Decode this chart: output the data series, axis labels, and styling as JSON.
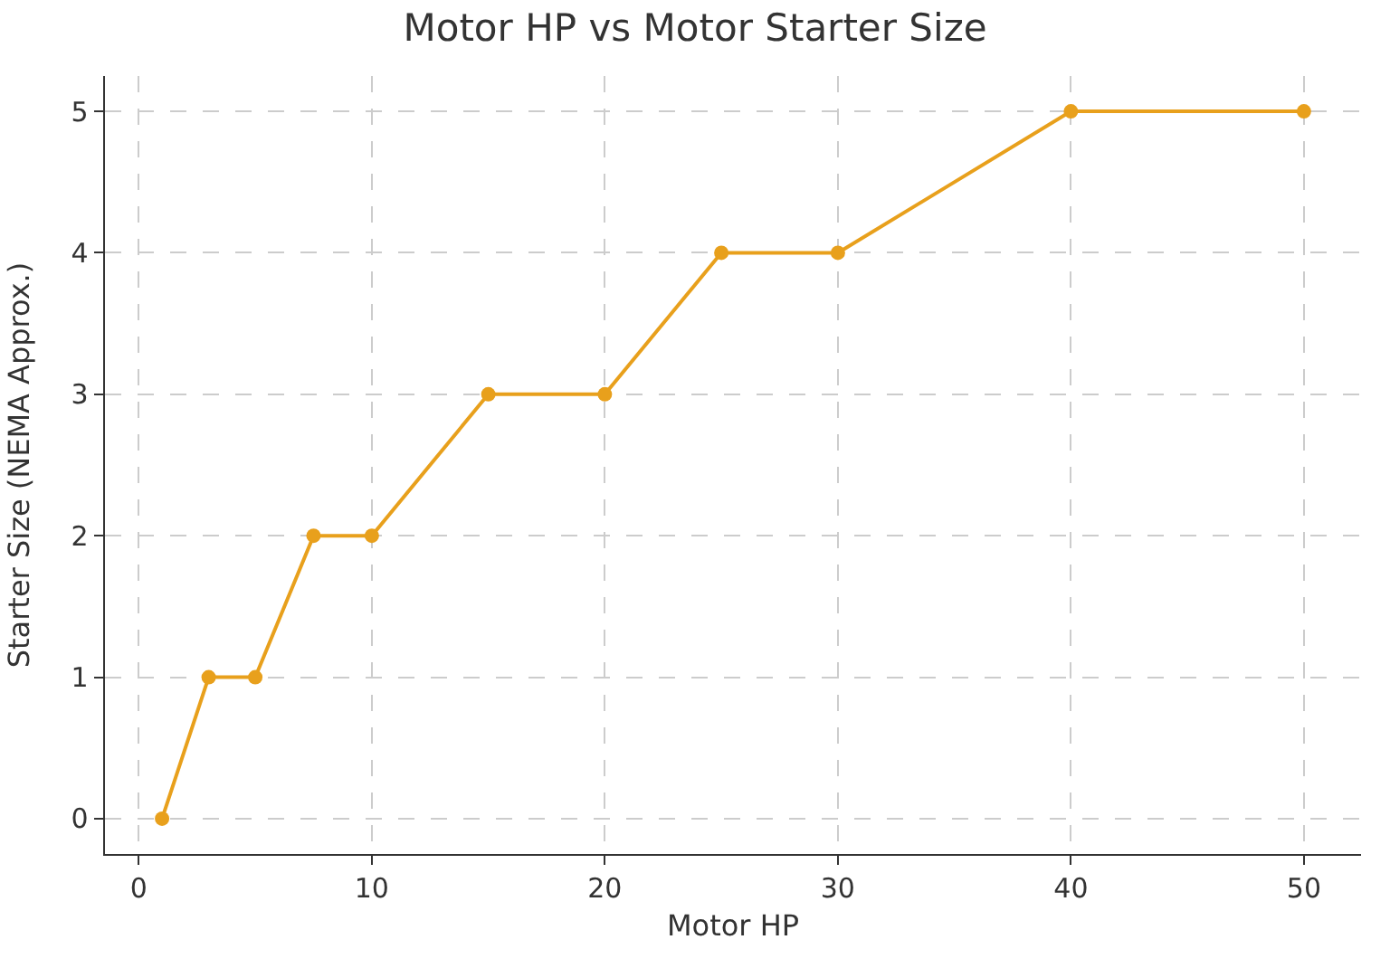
{
  "chart_data": {
    "type": "line",
    "title": "Motor HP vs Motor Starter Size",
    "xlabel": "Motor HP",
    "ylabel": "Starter Size (NEMA Approx.)",
    "x": [
      1,
      3,
      5,
      7.5,
      10,
      15,
      20,
      25,
      30,
      40,
      50
    ],
    "series": [
      {
        "color": "#e8a01c",
        "values": [
          0,
          1,
          1,
          2,
          2,
          3,
          3,
          4,
          4,
          5,
          5
        ]
      }
    ],
    "xlim": [
      -1.45,
      52.45
    ],
    "ylim": [
      -0.25,
      5.25
    ],
    "xticks": [
      0,
      10,
      20,
      30,
      40,
      50
    ],
    "yticks": [
      0,
      1,
      2,
      3,
      4,
      5
    ],
    "grid": true,
    "marker": "circle",
    "line_style": "solid"
  }
}
